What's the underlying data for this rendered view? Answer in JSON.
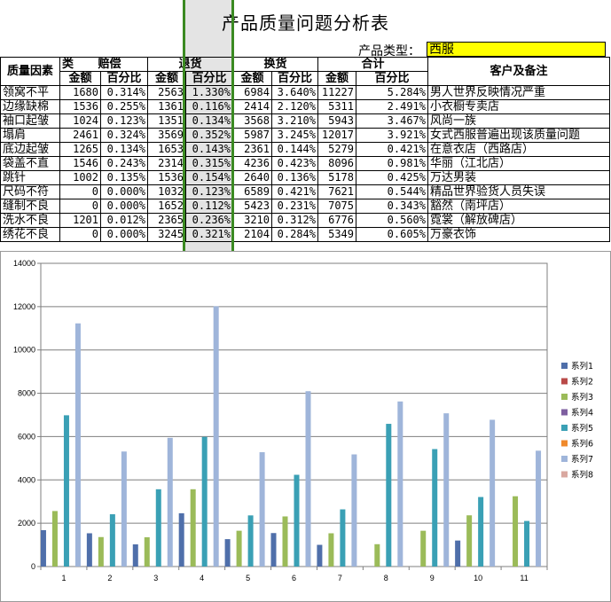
{
  "title": "产品质量问题分析表",
  "product_type_label": "产品类型：",
  "product_type_value": "西服",
  "headers": {
    "factor": "质量因素",
    "category": "类",
    "compensation": "赔偿",
    "returns": "退货",
    "exchange": "换货",
    "total": "合计",
    "customer": "客户及备注",
    "amount": "金额",
    "percent": "百分比"
  },
  "rows": [
    {
      "factor": "领窝不平",
      "c_amt": "1680",
      "c_pct": "0.314%",
      "r_amt": "2563",
      "r_pct": "1.330%",
      "e_amt": "6984",
      "e_pct": "3.640%",
      "t_amt": "11227",
      "t_pct": "5.284%",
      "note": "男人世界反映情况严重"
    },
    {
      "factor": "边缘缺棉",
      "c_amt": "1536",
      "c_pct": "0.255%",
      "r_amt": "1361",
      "r_pct": "0.116%",
      "e_amt": "2414",
      "e_pct": "2.120%",
      "t_amt": "5311",
      "t_pct": "2.491%",
      "note": "小衣橱专卖店"
    },
    {
      "factor": "袖口起皱",
      "c_amt": "1024",
      "c_pct": "0.123%",
      "r_amt": "1351",
      "r_pct": "0.134%",
      "e_amt": "3568",
      "e_pct": "3.210%",
      "t_amt": "5943",
      "t_pct": "3.467%",
      "note": "风尚一族"
    },
    {
      "factor": "塌肩",
      "c_amt": "2461",
      "c_pct": "0.324%",
      "r_amt": "3569",
      "r_pct": "0.352%",
      "e_amt": "5987",
      "e_pct": "3.245%",
      "t_amt": "12017",
      "t_pct": "3.921%",
      "note": "女式西服普遍出现该质量问题"
    },
    {
      "factor": "底边起皱",
      "c_amt": "1265",
      "c_pct": "0.134%",
      "r_amt": "1653",
      "r_pct": "0.143%",
      "e_amt": "2361",
      "e_pct": "0.144%",
      "t_amt": "5279",
      "t_pct": "0.421%",
      "note": "在意衣店（西路店）"
    },
    {
      "factor": "袋盖不直",
      "c_amt": "1546",
      "c_pct": "0.243%",
      "r_amt": "2314",
      "r_pct": "0.315%",
      "e_amt": "4236",
      "e_pct": "0.423%",
      "t_amt": "8096",
      "t_pct": "0.981%",
      "note": "华丽（江北店）"
    },
    {
      "factor": "跳针",
      "c_amt": "1002",
      "c_pct": "0.135%",
      "r_amt": "1536",
      "r_pct": "0.154%",
      "e_amt": "2640",
      "e_pct": "0.136%",
      "t_amt": "5178",
      "t_pct": "0.425%",
      "note": "万达男装"
    },
    {
      "factor": "尺码不符",
      "c_amt": "0",
      "c_pct": "0.000%",
      "r_amt": "1032",
      "r_pct": "0.123%",
      "e_amt": "6589",
      "e_pct": "0.421%",
      "t_amt": "7621",
      "t_pct": "0.544%",
      "note": "精品世界验货人员失误"
    },
    {
      "factor": "缝制不良",
      "c_amt": "0",
      "c_pct": "0.000%",
      "r_amt": "1652",
      "r_pct": "0.112%",
      "e_amt": "5423",
      "e_pct": "0.231%",
      "t_amt": "7075",
      "t_pct": "0.343%",
      "note": "豁然（南坪店）"
    },
    {
      "factor": "洗水不良",
      "c_amt": "1201",
      "c_pct": "0.012%",
      "r_amt": "2365",
      "r_pct": "0.236%",
      "e_amt": "3210",
      "e_pct": "0.312%",
      "t_amt": "6776",
      "t_pct": "0.560%",
      "note": "霓裳（解放碑店）"
    },
    {
      "factor": "绣花不良",
      "c_amt": "0",
      "c_pct": "0.000%",
      "r_amt": "3245",
      "r_pct": "0.321%",
      "e_amt": "2104",
      "e_pct": "0.284%",
      "t_amt": "5349",
      "t_pct": "0.605%",
      "note": "万豪衣饰"
    }
  ],
  "chart_data": {
    "type": "bar",
    "categories": [
      "1",
      "2",
      "3",
      "4",
      "5",
      "6",
      "7",
      "8",
      "9",
      "10",
      "11"
    ],
    "ylim": [
      0,
      14000
    ],
    "yticks": [
      "0",
      "2000",
      "4000",
      "6000",
      "8000",
      "10000",
      "12000",
      "14000"
    ],
    "grid": true,
    "legend_position": "right",
    "series": [
      {
        "name": "系列1",
        "color": "#4f6faa",
        "values": [
          1680,
          1536,
          1024,
          2461,
          1265,
          1546,
          1002,
          0,
          0,
          1201,
          0
        ]
      },
      {
        "name": "系列2",
        "color": "#b94a48",
        "values": [
          0,
          0,
          0,
          0,
          0,
          0,
          0,
          0,
          0,
          0,
          0
        ]
      },
      {
        "name": "系列3",
        "color": "#9bbb59",
        "values": [
          2563,
          1361,
          1351,
          3569,
          1653,
          2314,
          1536,
          1032,
          1652,
          2365,
          3245
        ]
      },
      {
        "name": "系列4",
        "color": "#7e5fa0",
        "values": [
          0,
          0,
          0,
          0,
          0,
          0,
          0,
          0,
          0,
          0,
          0
        ]
      },
      {
        "name": "系列5",
        "color": "#3aa0b5",
        "values": [
          6984,
          2414,
          3568,
          5987,
          2361,
          4236,
          2640,
          6589,
          5423,
          3210,
          2104
        ]
      },
      {
        "name": "系列6",
        "color": "#f08a2c",
        "values": [
          0,
          0,
          0,
          0,
          0,
          0,
          0,
          0,
          0,
          0,
          0
        ]
      },
      {
        "name": "系列7",
        "color": "#9fb5da",
        "values": [
          11227,
          5311,
          5943,
          12017,
          5279,
          8096,
          5178,
          7621,
          7075,
          6776,
          5349
        ]
      },
      {
        "name": "系列8",
        "color": "#d9a8a0",
        "values": [
          0,
          0,
          0,
          0,
          0,
          0,
          0,
          0,
          0,
          0,
          0
        ]
      }
    ]
  }
}
